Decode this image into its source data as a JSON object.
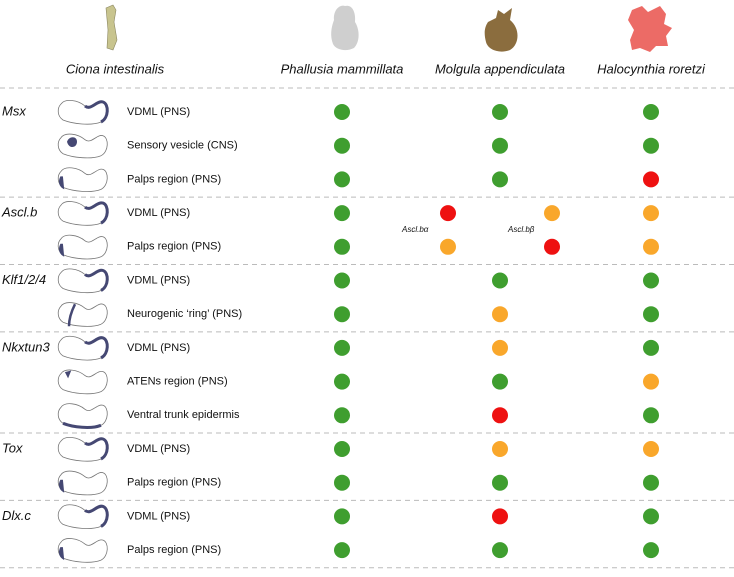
{
  "header": {
    "species": [
      "Ciona intestinalis",
      "Phallusia mammillata",
      "Molgula appendiculata",
      "Halocynthia roretzi"
    ]
  },
  "genes": [
    {
      "name": "Msx",
      "rows": [
        {
          "region": "VDML (PNS)",
          "phallusia": "#3f9e2f",
          "molgula": "#3f9e2f",
          "halocynthia": "#3f9e2f"
        },
        {
          "region": "Sensory vesicle (CNS)",
          "phallusia": "#3f9e2f",
          "molgula": "#3f9e2f",
          "halocynthia": "#3f9e2f"
        },
        {
          "region": "Palps region (PNS)",
          "phallusia": "#3f9e2f",
          "molgula": "#3f9e2f",
          "halocynthia": "#ee1111"
        }
      ]
    },
    {
      "name": "Ascl.b",
      "paralogs": [
        "Ascl.bα",
        "Ascl.bβ"
      ],
      "rows": [
        {
          "region": "VDML (PNS)",
          "phallusia": "#3f9e2f",
          "molgula": [
            "#ee1111",
            "#f9a72b"
          ],
          "halocynthia": "#f9a72b"
        },
        {
          "region": "Palps region (PNS)",
          "phallusia": "#3f9e2f",
          "molgula": [
            "#f9a72b",
            "#ee1111"
          ],
          "halocynthia": "#f9a72b"
        }
      ]
    },
    {
      "name": "Klf1/2/4",
      "rows": [
        {
          "region": "VDML (PNS)",
          "phallusia": "#3f9e2f",
          "molgula": "#3f9e2f",
          "halocynthia": "#3f9e2f"
        },
        {
          "region": "Neurogenic ‘ring’ (PNS)",
          "phallusia": "#3f9e2f",
          "molgula": "#f9a72b",
          "halocynthia": "#3f9e2f"
        }
      ]
    },
    {
      "name": "Nkxtun3",
      "rows": [
        {
          "region": "VDML (PNS)",
          "phallusia": "#3f9e2f",
          "molgula": "#f9a72b",
          "halocynthia": "#3f9e2f"
        },
        {
          "region": "ATENs region (PNS)",
          "phallusia": "#3f9e2f",
          "molgula": "#3f9e2f",
          "halocynthia": "#f9a72b"
        },
        {
          "region": "Ventral trunk epidermis",
          "phallusia": "#3f9e2f",
          "molgula": "#ee1111",
          "halocynthia": "#3f9e2f"
        }
      ]
    },
    {
      "name": "Tox",
      "rows": [
        {
          "region": "VDML (PNS)",
          "phallusia": "#3f9e2f",
          "molgula": "#f9a72b",
          "halocynthia": "#f9a72b"
        },
        {
          "region": "Palps region (PNS)",
          "phallusia": "#3f9e2f",
          "molgula": "#3f9e2f",
          "halocynthia": "#3f9e2f"
        }
      ]
    },
    {
      "name": "Dlx.c",
      "rows": [
        {
          "region": "VDML (PNS)",
          "phallusia": "#3f9e2f",
          "molgula": "#ee1111",
          "halocynthia": "#3f9e2f"
        },
        {
          "region": "Palps region (PNS)",
          "phallusia": "#3f9e2f",
          "molgula": "#3f9e2f",
          "halocynthia": "#3f9e2f"
        }
      ]
    }
  ]
}
